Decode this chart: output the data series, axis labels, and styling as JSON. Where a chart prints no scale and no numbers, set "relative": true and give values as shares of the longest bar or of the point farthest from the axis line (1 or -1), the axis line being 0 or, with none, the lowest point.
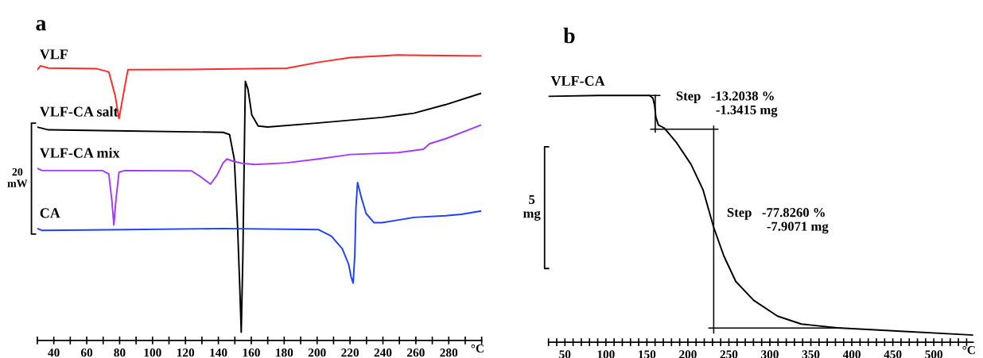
{
  "chart_data": [
    {
      "type": "line",
      "title": "a",
      "relative": true,
      "tick_labels": "x",
      "xlim": [
        30,
        300
      ],
      "xticks": [
        {
          "value": 30,
          "label": null
        },
        40,
        {
          "value": 50,
          "label": null
        },
        60,
        {
          "value": 70,
          "label": null
        },
        80,
        {
          "value": 90,
          "label": null
        },
        100,
        {
          "value": 110,
          "label": null
        },
        120,
        {
          "value": 130,
          "label": null
        },
        140,
        {
          "value": 150,
          "label": null
        },
        160,
        {
          "value": 170,
          "label": null
        },
        180,
        {
          "value": 190,
          "label": null
        },
        200,
        {
          "value": 210,
          "label": null
        },
        220,
        {
          "value": 230,
          "label": null
        },
        240,
        {
          "value": 250,
          "label": null
        },
        260,
        {
          "value": 270,
          "label": null
        },
        280,
        {
          "value": 290,
          "label": null
        },
        {
          "value": 300,
          "label": null
        }
      ],
      "xlabel": "°C",
      "annotations": [
        "20\nmW"
      ],
      "series": [
        {
          "name": "VLF",
          "color": "#ff2a2a",
          "x": [
            30,
            31.9,
            36.7,
            65.7,
            73.4,
            77.3,
            79.6,
            82.1,
            85.0,
            123.6,
            181.5,
            200.9,
            220.2,
            249.1,
            278.1,
            299.3
          ],
          "values": [
            0.947,
            0.961,
            0.953,
            0.951,
            0.939,
            0.853,
            0.77,
            0.853,
            0.947,
            0.948,
            0.952,
            0.974,
            0.991,
            1.0,
            0.998,
            0.997
          ]
        },
        {
          "name": "VLF-CA salt",
          "color": "#000000",
          "x": [
            30,
            36.7,
            85.0,
            142.9,
            146.8,
            149.7,
            151.6,
            153.0,
            153.9,
            154.9,
            155.7,
            156.4,
            158.0,
            160.3,
            164.2,
            170.0,
            200.9,
            239.5,
            258.8,
            278.1,
            299.3
          ],
          "values": [
            0.74,
            0.73,
            0.726,
            0.721,
            0.713,
            0.623,
            0.393,
            0.163,
            0,
            0.278,
            0.623,
            0.905,
            0.876,
            0.784,
            0.744,
            0.74,
            0.755,
            0.775,
            0.79,
            0.821,
            0.861
          ]
        },
        {
          "name": "VLF-CA mix",
          "color": "#a33bff",
          "x": [
            30,
            32.9,
            69.5,
            73.4,
            75.3,
            76.5,
            77.7,
            79.6,
            83.1,
            123.6,
            129.4,
            135.2,
            139.1,
            142.9,
            145.2,
            148.7,
            154.5,
            162.2,
            181.5,
            200.9,
            220.2,
            249.1,
            264.6,
            268.4,
            278.1,
            299.3
          ],
          "values": [
            0.591,
            0.583,
            0.583,
            0.571,
            0.474,
            0.387,
            0.474,
            0.577,
            0.583,
            0.582,
            0.56,
            0.534,
            0.566,
            0.611,
            0.625,
            0.617,
            0.609,
            0.605,
            0.611,
            0.625,
            0.641,
            0.648,
            0.66,
            0.68,
            0.698,
            0.747
          ]
        },
        {
          "name": "CA",
          "color": "#2040ff",
          "x": [
            30,
            32.9,
            85.0,
            142.9,
            200.9,
            208.6,
            215.3,
            219.2,
            220.7,
            221.9,
            222.9,
            223.6,
            224.6,
            226.9,
            229.8,
            234.6,
            239.5,
            258.8,
            278.1,
            287.7,
            299.3
          ],
          "values": [
            0.374,
            0.367,
            0.37,
            0.374,
            0.37,
            0.347,
            0.301,
            0.244,
            0.198,
            0.177,
            0.278,
            0.451,
            0.54,
            0.485,
            0.428,
            0.395,
            0.395,
            0.414,
            0.42,
            0.425,
            0.437
          ]
        }
      ]
    },
    {
      "type": "line",
      "title": "b",
      "relative": true,
      "tick_labels": "x",
      "xlim": [
        30,
        548
      ],
      "xticks": [
        {
          "value": 30,
          "label": null
        },
        {
          "value": 40,
          "label": null
        },
        50,
        {
          "value": 60,
          "label": null
        },
        {
          "value": 70,
          "label": null
        },
        {
          "value": 80,
          "label": null
        },
        {
          "value": 90,
          "label": null
        },
        100,
        {
          "value": 110,
          "label": null
        },
        {
          "value": 120,
          "label": null
        },
        {
          "value": 130,
          "label": null
        },
        {
          "value": 140,
          "label": null
        },
        150,
        {
          "value": 160,
          "label": null
        },
        {
          "value": 170,
          "label": null
        },
        {
          "value": 180,
          "label": null
        },
        {
          "value": 190,
          "label": null
        },
        200,
        {
          "value": 210,
          "label": null
        },
        {
          "value": 220,
          "label": null
        },
        {
          "value": 230,
          "label": null
        },
        {
          "value": 240,
          "label": null
        },
        250,
        {
          "value": 260,
          "label": null
        },
        {
          "value": 270,
          "label": null
        },
        {
          "value": 280,
          "label": null
        },
        {
          "value": 290,
          "label": null
        },
        300,
        {
          "value": 310,
          "label": null
        },
        {
          "value": 320,
          "label": null
        },
        {
          "value": 330,
          "label": null
        },
        {
          "value": 340,
          "label": null
        },
        350,
        {
          "value": 360,
          "label": null
        },
        {
          "value": 370,
          "label": null
        },
        {
          "value": 380,
          "label": null
        },
        {
          "value": 390,
          "label": null
        },
        400,
        {
          "value": 410,
          "label": null
        },
        {
          "value": 420,
          "label": null
        },
        {
          "value": 430,
          "label": null
        },
        {
          "value": 440,
          "label": null
        },
        450,
        {
          "value": 460,
          "label": null
        },
        {
          "value": 470,
          "label": null
        },
        {
          "value": 480,
          "label": null
        },
        {
          "value": 490,
          "label": null
        },
        500,
        {
          "value": 510,
          "label": null
        },
        {
          "value": 520,
          "label": null
        },
        {
          "value": 530,
          "label": null
        },
        {
          "value": 540,
          "label": null
        }
      ],
      "xlabel": "°C",
      "annotations": [
        "5\nmg",
        "Step   -13.2038 %\n            -1.3415 mg",
        "Step   -77.8260 %\n            -7.9071 mg"
      ],
      "series": [
        {
          "name": "VLF-CA",
          "color": "#000000",
          "x": [
            30,
            91.1,
            153.0,
            157.3,
            159.5,
            160.9,
            163.9,
            171.1,
            185.7,
            203.9,
            218.4,
            231.5,
            243.9,
            258.4,
            280.3,
            309.4,
            338.4,
            382.1,
            454.8,
            547.6
          ],
          "values": [
            0.996,
            1,
            1,
            0.989,
            0.956,
            0.91,
            0.877,
            0.864,
            0.805,
            0.712,
            0.607,
            0.449,
            0.33,
            0.224,
            0.145,
            0.079,
            0.046,
            0.03,
            0.017,
            0
          ]
        },
        {
          "color": "#000000",
          "x": [
            153.0,
            165.7
          ],
          "values": [
            1,
            1
          ]
        },
        {
          "color": "#000000",
          "x": [
            160.2,
            160.2
          ],
          "values": [
            1,
            0.847
          ]
        },
        {
          "color": "#000000",
          "x": [
            154.8,
            236.6
          ],
          "values": [
            0.859,
            0.859
          ]
        },
        {
          "color": "#000000",
          "x": [
            231.5,
            231.5
          ],
          "values": [
            0.871,
            0.009
          ]
        },
        {
          "color": "#000000",
          "x": [
            225.7,
            385.7
          ],
          "values": [
            0.029,
            0.029
          ]
        }
      ]
    }
  ]
}
